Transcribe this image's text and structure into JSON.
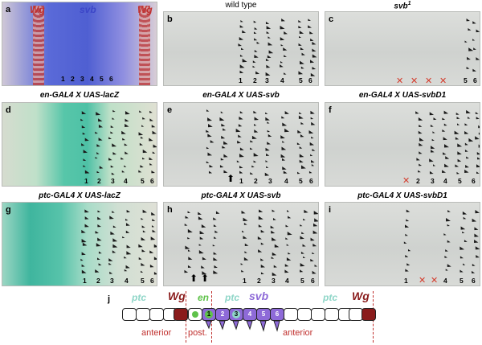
{
  "panels": [
    {
      "id": "a",
      "label": "a",
      "title": "",
      "header": {
        "wg_left": "Wg",
        "svb": "svb",
        "wg_right": "Wg"
      },
      "numbers": [
        "1",
        "2",
        "3",
        "4",
        "5",
        "6"
      ]
    },
    {
      "id": "b",
      "label": "b",
      "title": "wild type",
      "numbers": [
        "1",
        "2",
        "3",
        "4",
        "5",
        "6"
      ]
    },
    {
      "id": "c",
      "label": "c",
      "title": "svb",
      "title_sup": "1",
      "numbers": [
        "5",
        "6"
      ]
    },
    {
      "id": "d",
      "label": "d",
      "title": "en-GAL4 X UAS-lacZ",
      "numbers": [
        "1",
        "2",
        "3",
        "4",
        "5",
        "6"
      ]
    },
    {
      "id": "e",
      "label": "e",
      "title": "en-GAL4 X UAS-svb",
      "numbers": [
        "1",
        "2",
        "3",
        "4",
        "5",
        "6"
      ]
    },
    {
      "id": "f",
      "label": "f",
      "title": "en-GAL4 X UAS-svbD1",
      "numbers": [
        "2",
        "3",
        "4",
        "5",
        "6"
      ]
    },
    {
      "id": "g",
      "label": "g",
      "title": "ptc-GAL4 X UAS-lacZ",
      "numbers": [
        "1",
        "2",
        "3",
        "4",
        "5",
        "6"
      ]
    },
    {
      "id": "h",
      "label": "h",
      "title": "ptc-GAL4 X UAS-svb",
      "numbers": [
        "1",
        "2",
        "3",
        "4",
        "5",
        "6"
      ]
    },
    {
      "id": "i",
      "label": "i",
      "title": "ptc-GAL4 X UAS-svbD1",
      "numbers": [
        "1",
        "4",
        "5",
        "6"
      ]
    }
  ],
  "diagram": {
    "label": "j",
    "ptc_left": "ptc",
    "wg_left": "Wg",
    "en": "en",
    "ptc_mid": "ptc",
    "svb": "svb",
    "ptc_right": "ptc",
    "wg_right": "Wg",
    "anterior_left": "anterior",
    "posterior": "post.",
    "anterior_right": "anterior",
    "cell_numbers": [
      "1",
      "2",
      "3",
      "4",
      "5",
      "6"
    ],
    "colors": {
      "wg": "#8a1c1c",
      "svb": "#8e6ad8",
      "ptc": "#8fd6c8",
      "en": "#5fc24a",
      "boundary": "#c0302e"
    }
  }
}
